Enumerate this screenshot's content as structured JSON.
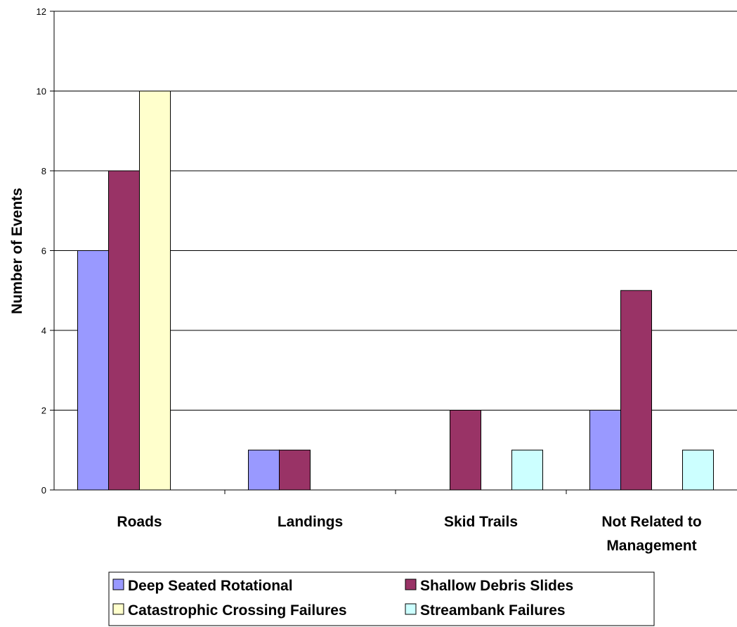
{
  "chart_data": {
    "type": "bar",
    "title": "",
    "ylabel": "Number of Events",
    "xlabel": "",
    "categories": [
      [
        "Roads"
      ],
      [
        "Landings"
      ],
      [
        "Skid Trails"
      ],
      [
        "Not Related to",
        "Management"
      ]
    ],
    "ylim": [
      0,
      12
    ],
    "yticks": [
      0,
      2,
      4,
      6,
      8,
      10,
      12
    ],
    "grid": true,
    "legend_position": "bottom",
    "series": [
      {
        "name": "Deep Seated Rotational",
        "color": "#9999ff",
        "values": [
          6,
          1,
          0,
          2
        ]
      },
      {
        "name": "Shallow Debris Slides",
        "color": "#993366",
        "values": [
          8,
          1,
          2,
          5
        ]
      },
      {
        "name": "Catastrophic Crossing Failures",
        "color": "#ffffcc",
        "values": [
          10,
          0,
          0,
          0
        ]
      },
      {
        "name": "Streambank Failures",
        "color": "#ccffff",
        "values": [
          0,
          0,
          1,
          1
        ]
      }
    ]
  }
}
